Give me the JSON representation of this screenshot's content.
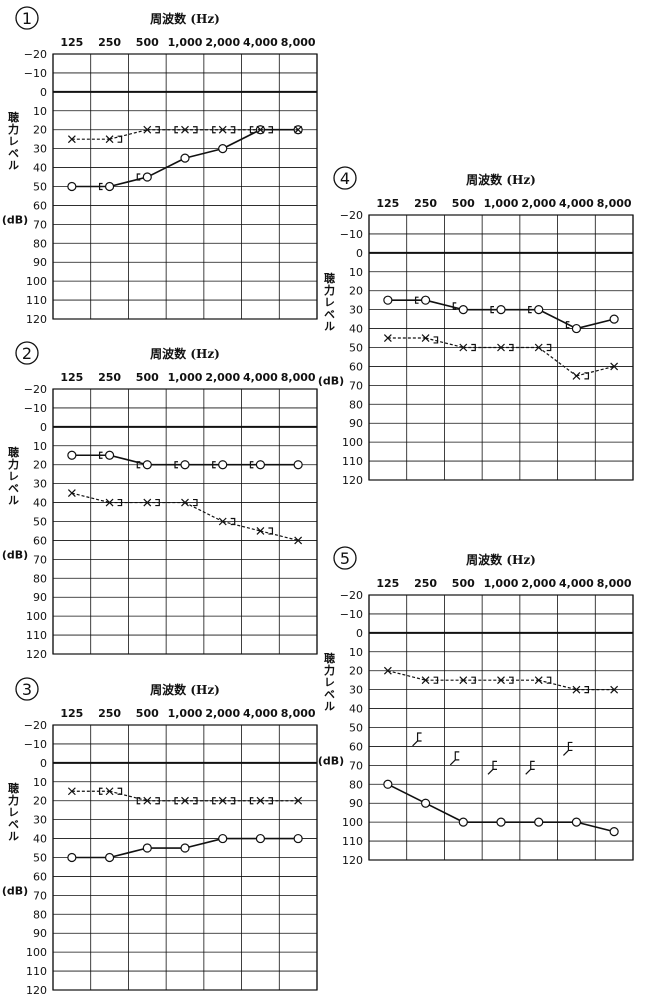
{
  "frequencies": [
    "125",
    "250",
    "500",
    "1,000",
    "2,000",
    "4,000",
    "8,000"
  ],
  "chart_data": [
    {
      "type": "line",
      "number": "1",
      "title": "周波数 (Hz)",
      "ylabel": "聴力レベル",
      "yunit": "(dB)",
      "ylim": [
        -20,
        120
      ],
      "y_ticks": [
        "−20",
        "−10",
        "0",
        "10",
        "20",
        "30",
        "40",
        "50",
        "60",
        "70",
        "80",
        "90",
        "100",
        "110",
        "120"
      ],
      "series": [
        {
          "style": "solid",
          "marker": "circle",
          "values": [
            50,
            50,
            45,
            35,
            30,
            20,
            20
          ]
        },
        {
          "style": "dashed",
          "marker": "x",
          "values": [
            25,
            25,
            20,
            20,
            20,
            20,
            20
          ]
        }
      ],
      "bone": [
        {
          "side": "left",
          "y": [
            50,
            45,
            20,
            20,
            20
          ]
        },
        {
          "side": "right",
          "y": [
            25,
            20,
            20,
            20,
            20
          ]
        }
      ]
    },
    {
      "type": "line",
      "number": "2",
      "title": "周波数 (Hz)",
      "ylabel": "聴力レベル",
      "yunit": "(dB)",
      "ylim": [
        -20,
        120
      ],
      "y_ticks": [
        "−20",
        "−10",
        "0",
        "10",
        "20",
        "30",
        "40",
        "50",
        "60",
        "70",
        "80",
        "90",
        "100",
        "110",
        "120"
      ],
      "series": [
        {
          "style": "solid",
          "marker": "circle",
          "values": [
            15,
            15,
            20,
            20,
            20,
            20,
            20
          ]
        },
        {
          "style": "dashed",
          "marker": "x",
          "values": [
            35,
            40,
            40,
            40,
            50,
            55,
            60
          ]
        }
      ],
      "bone": [
        {
          "side": "left",
          "y": [
            15,
            20,
            20,
            20,
            20
          ]
        },
        {
          "side": "right",
          "y": [
            40,
            40,
            40,
            50,
            55
          ]
        }
      ]
    },
    {
      "type": "line",
      "number": "3",
      "title": "周波数 (Hz)",
      "ylabel": "聴力レベル",
      "yunit": "(dB)",
      "ylim": [
        -20,
        120
      ],
      "y_ticks": [
        "−20",
        "−10",
        "0",
        "10",
        "20",
        "30",
        "40",
        "50",
        "60",
        "70",
        "80",
        "90",
        "100",
        "110",
        "120"
      ],
      "series": [
        {
          "style": "solid",
          "marker": "circle",
          "values": [
            50,
            50,
            45,
            45,
            40,
            40,
            40
          ]
        },
        {
          "style": "dashed",
          "marker": "x",
          "values": [
            15,
            15,
            20,
            20,
            20,
            20,
            20
          ]
        }
      ],
      "bone": [
        {
          "side": "left",
          "y": [
            15,
            20,
            20,
            20,
            20
          ]
        },
        {
          "side": "right",
          "y": [
            15,
            20,
            20,
            20,
            20
          ]
        }
      ]
    },
    {
      "type": "line",
      "number": "4",
      "title": "周波数 (Hz)",
      "ylabel": "聴力レベル",
      "yunit": "(dB)",
      "ylim": [
        -20,
        120
      ],
      "y_ticks": [
        "−20",
        "−10",
        "0",
        "10",
        "20",
        "30",
        "40",
        "50",
        "60",
        "70",
        "80",
        "90",
        "100",
        "110",
        "120"
      ],
      "series": [
        {
          "style": "solid",
          "marker": "circle",
          "values": [
            25,
            25,
            30,
            30,
            30,
            40,
            35
          ]
        },
        {
          "style": "dashed",
          "marker": "x",
          "values": [
            45,
            45,
            50,
            50,
            50,
            65,
            60
          ]
        }
      ],
      "bone": [
        {
          "side": "left",
          "y": [
            25,
            28,
            30,
            30,
            38
          ]
        },
        {
          "side": "right",
          "y": [
            46,
            50,
            50,
            50,
            65
          ]
        }
      ]
    },
    {
      "type": "line",
      "number": "5",
      "title": "周波数 (Hz)",
      "ylabel": "聴力レベル",
      "yunit": "(dB)",
      "ylim": [
        -20,
        120
      ],
      "y_ticks": [
        "−20",
        "−10",
        "0",
        "10",
        "20",
        "30",
        "40",
        "50",
        "60",
        "70",
        "80",
        "90",
        "100",
        "110",
        "120"
      ],
      "series": [
        {
          "style": "solid",
          "marker": "circle",
          "values": [
            80,
            90,
            100,
            100,
            100,
            100,
            105
          ]
        },
        {
          "style": "dashed",
          "marker": "x",
          "values": [
            20,
            25,
            25,
            25,
            25,
            30,
            30
          ]
        }
      ],
      "bone": [
        {
          "side": "right",
          "y": [
            25,
            25,
            25,
            25,
            30
          ]
        }
      ],
      "bone_scaleout": [
        55,
        65,
        70,
        70,
        60
      ]
    }
  ]
}
